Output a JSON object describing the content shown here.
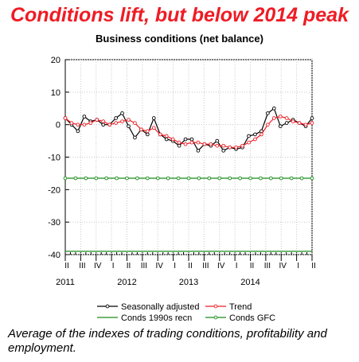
{
  "headline": "Conditions lift, but below 2014 peak",
  "subtitle": "Business conditions (net balance)",
  "caption": "Average of the indexes of trading conditions, profitability and employment.",
  "chart_data": {
    "type": "line",
    "title": "Business conditions (net balance)",
    "ylim": [
      -40,
      20
    ],
    "y_ticks": [
      20,
      10,
      0,
      -10,
      -20,
      -30,
      -40
    ],
    "quarter_ticks": [
      "II",
      "III",
      "IV",
      "I",
      "II",
      "III",
      "IV",
      "I",
      "II",
      "III",
      "IV",
      "I",
      "II",
      "III",
      "IV",
      "I",
      "II"
    ],
    "year_labels": [
      {
        "label": "2011",
        "month": 6
      },
      {
        "label": "2012",
        "month": 18
      },
      {
        "label": "2013",
        "month": 30
      },
      {
        "label": "2014",
        "month": 42
      }
    ],
    "x_start": "2010-04",
    "series": [
      {
        "name": "Seasonally adjusted",
        "color": "#000000",
        "values": [
          2,
          0,
          -2,
          2.5,
          1,
          1.5,
          0,
          0,
          2,
          3.5,
          -0.5,
          -4,
          -1.5,
          -3,
          2,
          -3,
          -4.5,
          -5,
          -6.5,
          -4.5,
          -4.5,
          -8,
          -6,
          -6.5,
          -5,
          -8,
          -7,
          -7.5,
          -7,
          -3.5,
          -3,
          -2,
          3.5,
          5,
          -0.5,
          0.5,
          1.5,
          0.5,
          -0.5,
          2
        ]
      },
      {
        "name": "Trend",
        "color": "#ee1c25",
        "values": [
          2,
          0.5,
          0,
          0,
          0.5,
          1.5,
          1,
          0,
          0.5,
          1,
          1.5,
          0.5,
          -1.5,
          -2,
          -1,
          -3,
          -3.5,
          -4.5,
          -5.5,
          -6,
          -5.5,
          -5.5,
          -6,
          -6,
          -6.5,
          -6.5,
          -7,
          -7,
          -6.5,
          -5.5,
          -4.5,
          -3,
          0,
          2,
          2.5,
          2,
          1,
          0.5,
          0,
          0.5
        ]
      },
      {
        "name": "Conds 1990s recn",
        "color": "#1a8c1a",
        "constant": -39
      },
      {
        "name": "Conds GFC",
        "color": "#1a8c1a",
        "constant": -16.5
      }
    ]
  }
}
